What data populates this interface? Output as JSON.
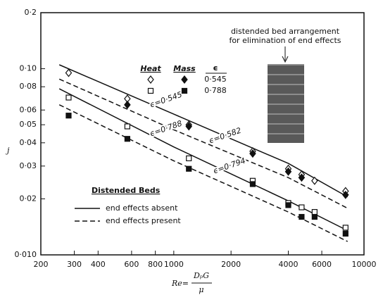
{
  "chart_data": {
    "type": "scatter",
    "y_label": "j",
    "x_label": {
      "lhs": "Re=",
      "numerator": "DₚG",
      "denominator": "μ"
    },
    "log_x": true,
    "log_y": true,
    "xlim": [
      200,
      10000
    ],
    "xticks": [
      200,
      300,
      400,
      600,
      800,
      1000,
      2000,
      4000,
      6000,
      10000
    ],
    "ylim": [
      0.01,
      0.2
    ],
    "yticks": [
      {
        "value": 0.2,
        "label": "0·2"
      },
      {
        "value": 0.1,
        "label": "0·10"
      },
      {
        "value": 0.08,
        "label": "0·08"
      },
      {
        "value": 0.06,
        "label": "0·06"
      },
      {
        "value": 0.05,
        "label": "0·05"
      },
      {
        "value": 0.04,
        "label": "0·04"
      },
      {
        "value": 0.03,
        "label": "0·03"
      },
      {
        "value": 0.02,
        "label": "0·02"
      },
      {
        "value": 0.01,
        "label": "0·010"
      }
    ],
    "series": [
      {
        "marker": "diamond",
        "filled": false,
        "color": "#111111",
        "x": [
          280,
          570,
          1200,
          2600,
          4000,
          4700,
          5500,
          8000
        ],
        "values": [
          0.095,
          0.069,
          0.05,
          0.036,
          0.029,
          0.027,
          0.025,
          0.022
        ]
      },
      {
        "marker": "diamond",
        "filled": true,
        "color": "#111111",
        "x": [
          570,
          1200,
          2600,
          4000,
          4700,
          8000
        ],
        "values": [
          0.064,
          0.049,
          0.035,
          0.028,
          0.026,
          0.021
        ]
      },
      {
        "marker": "square",
        "filled": false,
        "color": "#111111",
        "x": [
          280,
          570,
          1200,
          2600,
          4000,
          4700,
          5500,
          8000
        ],
        "values": [
          0.07,
          0.049,
          0.033,
          0.025,
          0.019,
          0.018,
          0.017,
          0.014
        ]
      },
      {
        "marker": "square",
        "filled": true,
        "color": "#111111",
        "x": [
          280,
          570,
          1200,
          2600,
          4000,
          4700,
          5500,
          8000
        ],
        "values": [
          0.056,
          0.042,
          0.029,
          0.024,
          0.0185,
          0.016,
          0.016,
          0.013
        ]
      }
    ],
    "lines": [
      {
        "label": "ϵ=0·545",
        "style": "solid",
        "x": [
          250,
          1000,
          4000,
          8200
        ],
        "values": [
          0.105,
          0.057,
          0.031,
          0.0205
        ]
      },
      {
        "label": "ϵ=0·582",
        "style": "dashed",
        "x": [
          250,
          1000,
          4000,
          8200
        ],
        "values": [
          0.088,
          0.047,
          0.026,
          0.0178
        ]
      },
      {
        "label": "ϵ=0·788",
        "style": "solid",
        "x": [
          250,
          1000,
          4000,
          8200
        ],
        "values": [
          0.078,
          0.038,
          0.0195,
          0.0135
        ]
      },
      {
        "label": "ϵ=0·794",
        "style": "dashed",
        "x": [
          250,
          1000,
          4000,
          8200
        ],
        "values": [
          0.064,
          0.032,
          0.017,
          0.0118
        ]
      }
    ],
    "marker_legend": {
      "columns": [
        "Heat",
        "Mass"
      ],
      "header": "ϵ",
      "rows": [
        "0·545",
        "0·788"
      ]
    },
    "line_legend": {
      "title": "Distended Beds",
      "entries": [
        "end effects absent",
        "end effects present"
      ]
    },
    "annotation": [
      "distended bed arrangement",
      "for elimination of end effects"
    ]
  }
}
